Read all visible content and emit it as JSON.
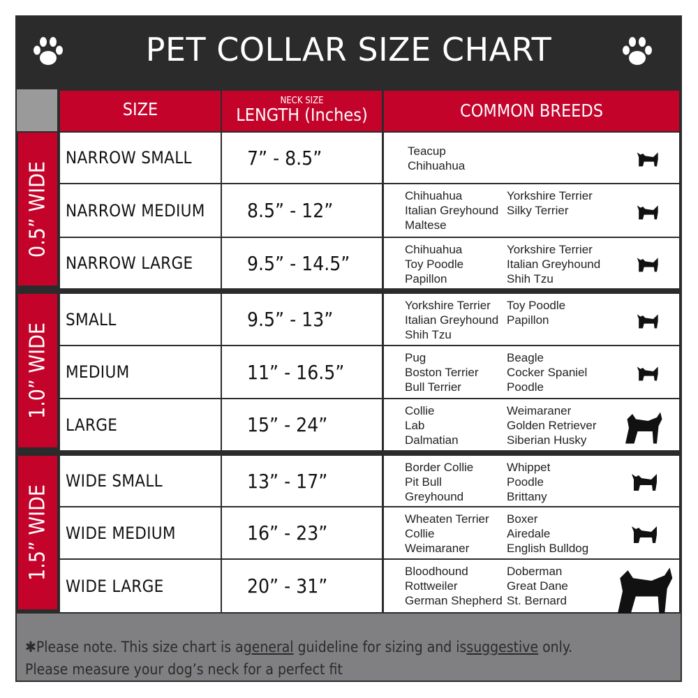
{
  "title": "PET COLLAR SIZE CHART",
  "icons": {
    "left": "paw-print-icon",
    "right": "paw-print-icon"
  },
  "colors": {
    "header_bg": "#2b2b2b",
    "accent_red": "#c4032b",
    "footer_bg": "#808083"
  },
  "columns": {
    "size": "SIZE",
    "length_small": "NECK SIZE",
    "length": "LENGTH (Inches)",
    "breeds": "COMMON BREEDS"
  },
  "groups": [
    {
      "label": "0.5” WIDE",
      "rows": [
        {
          "size": "NARROW SMALL",
          "length": "7” - 8.5”",
          "breeds_col1": [
            "Teacup",
            "Chihuahua"
          ],
          "breeds_col2": [],
          "dog_icon": "yorkie-silhouette-icon"
        },
        {
          "size": "NARROW MEDIUM",
          "length": "8.5” - 12”",
          "breeds_col1": [
            "Chihuahua",
            "Italian Greyhound",
            "Maltese"
          ],
          "breeds_col2": [
            "Yorkshire Terrier",
            "Silky Terrier"
          ],
          "dog_icon": "chihuahua-silhouette-icon"
        },
        {
          "size": "NARROW LARGE",
          "length": "9.5” - 14.5”",
          "breeds_col1": [
            "Chihuahua",
            "Toy Poodle",
            "Papillon"
          ],
          "breeds_col2": [
            "Yorkshire Terrier",
            "Italian Greyhound",
            "Shih Tzu"
          ],
          "dog_icon": "pomeranian-silhouette-icon"
        }
      ]
    },
    {
      "label": "1.0” WIDE",
      "rows": [
        {
          "size": "SMALL",
          "length": "9.5” - 13”",
          "breeds_col1": [
            "Yorkshire Terrier",
            "Italian Greyhound",
            "Shih Tzu"
          ],
          "breeds_col2": [
            "Toy Poodle",
            "Papillon"
          ],
          "dog_icon": "pomeranian-silhouette-icon"
        },
        {
          "size": "MEDIUM",
          "length": "11” - 16.5”",
          "breeds_col1": [
            "Pug",
            "Boston Terrier",
            "Bull Terrier"
          ],
          "breeds_col2": [
            "Beagle",
            "Cocker Spaniel",
            "Poodle"
          ],
          "dog_icon": "dachshund-silhouette-icon"
        },
        {
          "size": "LARGE",
          "length": "15” - 24”",
          "breeds_col1": [
            "Collie",
            "Lab",
            "Dalmatian"
          ],
          "breeds_col2": [
            "Weimaraner",
            "Golden Retriever",
            "Siberian Husky"
          ],
          "dog_icon": "shepherd-silhouette-icon"
        }
      ]
    },
    {
      "label": "1.5” WIDE",
      "rows": [
        {
          "size": "WIDE SMALL",
          "length": "13” - 17”",
          "breeds_col1": [
            "Border Collie",
            "Pit Bull",
            "Greyhound"
          ],
          "breeds_col2": [
            "Whippet",
            "Poodle",
            "Brittany"
          ],
          "dog_icon": "bulldog-silhouette-icon"
        },
        {
          "size": "WIDE MEDIUM",
          "length": "16” - 23”",
          "breeds_col1": [
            "Wheaten Terrier",
            "Collie",
            "Weimaraner"
          ],
          "breeds_col2": [
            "Boxer",
            "Airedale",
            "English Bulldog"
          ],
          "dog_icon": "pitbull-silhouette-icon"
        },
        {
          "size": "WIDE LARGE",
          "length": "20” - 31”",
          "breeds_col1": [
            "Bloodhound",
            "Rottweiler",
            "German Shepherd"
          ],
          "breeds_col2": [
            "Doberman",
            "Great Dane",
            "St. Bernard"
          ],
          "dog_icon": "doberman-silhouette-icon"
        }
      ]
    }
  ],
  "footer": {
    "part1": "✱Please note. This size chart is a",
    "general": "general",
    "part2": " guideline for sizing and is",
    "suggestive": "suggestive",
    "part3": " only.",
    "line2": "Please measure your dog’s neck for a perfect fit"
  }
}
